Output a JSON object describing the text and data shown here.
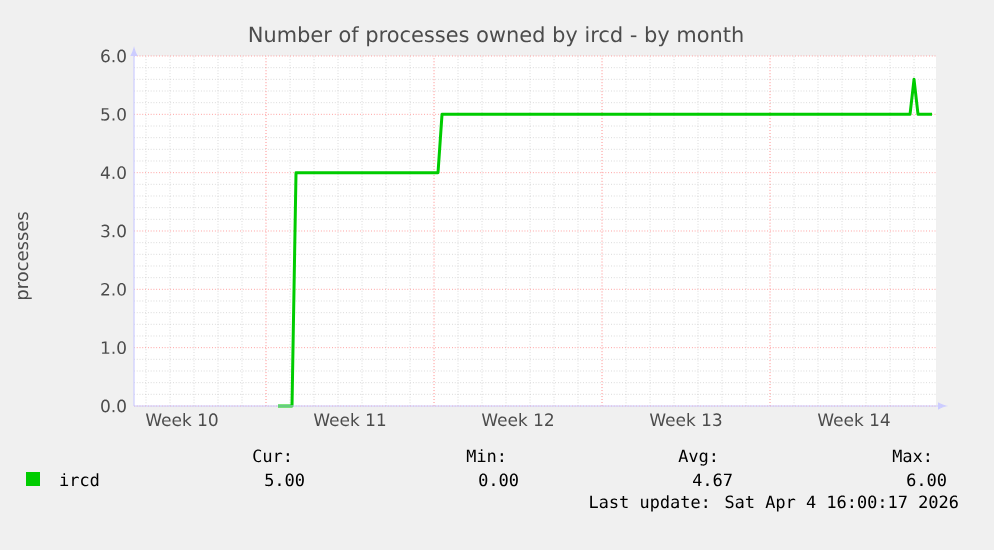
{
  "chart_data": {
    "type": "line",
    "title": "Number of processes owned by ircd - by month",
    "ylabel": "processes",
    "x": [
      "2026-03-09T12:00",
      "2026-03-10T02:00",
      "2026-03-10T06:00",
      "2026-03-16T04:00",
      "2026-03-16T08:00",
      "2026-04-04T20:00",
      "2026-04-05T00:00",
      "2026-04-05T04:00",
      "2026-04-05T18:00"
    ],
    "series": [
      {
        "name": "ircd",
        "color": "#00cc00",
        "values": [
          0,
          0,
          4,
          4,
          5,
          5,
          5.6,
          5,
          5
        ]
      }
    ],
    "xlim": [
      "2026-03-03T12:00",
      "2026-04-05T22:00"
    ],
    "xticks": [
      {
        "value": "2026-03-05T12:00",
        "label": "Week 10"
      },
      {
        "value": "2026-03-09",
        "label": null
      },
      {
        "value": "2026-03-12T12:00",
        "label": "Week 11"
      },
      {
        "value": "2026-03-16",
        "label": null
      },
      {
        "value": "2026-03-19T12:00",
        "label": "Week 12"
      },
      {
        "value": "2026-03-23",
        "label": null
      },
      {
        "value": "2026-03-26T12:00",
        "label": "Week 13"
      },
      {
        "value": "2026-03-30",
        "label": null
      },
      {
        "value": "2026-04-02T12:00",
        "label": "Week 14"
      }
    ],
    "ylim": [
      0,
      6
    ],
    "yticks": [
      {
        "value": 0,
        "label": "0.0"
      },
      {
        "value": 1,
        "label": "1.0"
      },
      {
        "value": 2,
        "label": "2.0"
      },
      {
        "value": 3,
        "label": "3.0"
      },
      {
        "value": 4,
        "label": "4.0"
      },
      {
        "value": 5,
        "label": "5.0"
      },
      {
        "value": 6,
        "label": "6.0"
      }
    ],
    "grid": true,
    "legend": "bottom",
    "annotations": [
      "Cur:",
      "Min:",
      "Avg:",
      "Max:",
      "5.00",
      "0.00",
      "4.67",
      "6.00",
      "Last update: Sat Apr  4 16:00:17 2026"
    ]
  }
}
